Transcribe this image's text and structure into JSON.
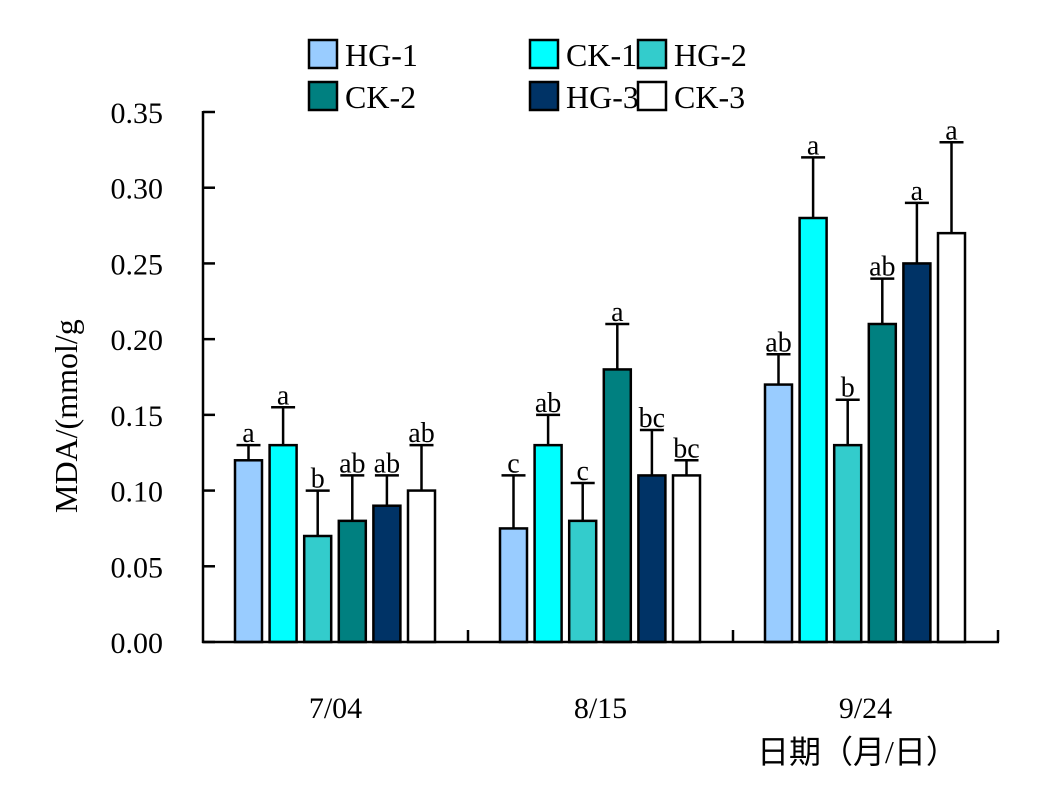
{
  "chart_data": {
    "type": "bar",
    "title": "",
    "xlabel": "日期（月/日）",
    "ylabel": "MDA/(mmol/g",
    "ylim": [
      0,
      0.35
    ],
    "yticks": [
      "0.00",
      "0.05",
      "0.10",
      "0.15",
      "0.20",
      "0.25",
      "0.30",
      "0.35"
    ],
    "ytick_values": [
      0,
      0.05,
      0.1,
      0.15,
      0.2,
      0.25,
      0.3,
      0.35
    ],
    "grid": false,
    "legend_position": "top-center",
    "categories": [
      "7/04",
      "8/15",
      "9/24"
    ],
    "series": [
      {
        "name": "HG-1",
        "color": "#99CCFF",
        "values": [
          0.12,
          0.075,
          0.17
        ],
        "error_upper": [
          0.13,
          0.11,
          0.19
        ],
        "significance": [
          "a",
          "c",
          "ab"
        ]
      },
      {
        "name": "CK-1",
        "color": "#00FFFF",
        "values": [
          0.13,
          0.13,
          0.28
        ],
        "error_upper": [
          0.155,
          0.15,
          0.32
        ],
        "significance": [
          "a",
          "ab",
          "a"
        ]
      },
      {
        "name": "HG-2",
        "color": "#33CCCC",
        "values": [
          0.07,
          0.08,
          0.13
        ],
        "error_upper": [
          0.1,
          0.105,
          0.16
        ],
        "significance": [
          "b",
          "c",
          "b"
        ]
      },
      {
        "name": "CK-2",
        "color": "#008080",
        "values": [
          0.08,
          0.18,
          0.21
        ],
        "error_upper": [
          0.11,
          0.21,
          0.24
        ],
        "significance": [
          "ab",
          "a",
          "ab"
        ]
      },
      {
        "name": "HG-3",
        "color": "#003366",
        "values": [
          0.09,
          0.11,
          0.25
        ],
        "error_upper": [
          0.11,
          0.14,
          0.29
        ],
        "significance": [
          "ab",
          "bc",
          "a"
        ]
      },
      {
        "name": "CK-3",
        "color": "#FFFFFF",
        "values": [
          0.1,
          0.11,
          0.27
        ],
        "error_upper": [
          0.13,
          0.12,
          0.33
        ],
        "significance": [
          "ab",
          "bc",
          "a"
        ]
      }
    ]
  }
}
